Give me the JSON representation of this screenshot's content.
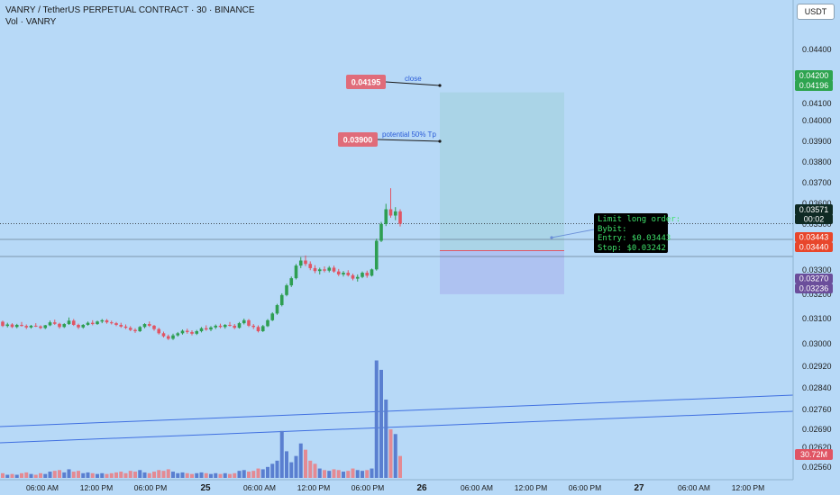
{
  "header": {
    "symbol_line": "VANRY / TetherUS PERPETUAL CONTRACT · 30 · BINANCE",
    "volume_line": "Vol · VANRY"
  },
  "currency_button": "USDT",
  "annotations": {
    "close_tag": "0.04195",
    "close_text": "close",
    "tp_tag": "0.03900",
    "tp_text": "potential 50% Tp",
    "note_lines": [
      "Limit long order:",
      "Bybit:",
      "Entry: $0.03443",
      "Stop: $0.03242"
    ]
  },
  "price_labels": {
    "target_top": "0.04200",
    "target_bottom": "0.04196",
    "last_price": "0.03571",
    "countdown": "00:02",
    "entry_top": "0.03443",
    "entry_bottom": "0.03440",
    "stop_top": "0.03270",
    "stop_bottom": "0.03236",
    "volume_value": "30.72M"
  },
  "colors": {
    "background": "#b7d9f7",
    "up": "#2e9e52",
    "down": "#e05564",
    "vol_up": "#5a7fd0",
    "vol_down": "#e48a93",
    "target_zone": "#a9d3e4",
    "stop_zone": "#adbff0",
    "trendline": "#3f6fe0"
  },
  "chart_data": {
    "type": "candlestick",
    "y_axis_ticks": [
      "0.04400",
      "0.04100",
      "0.04000",
      "0.03900",
      "0.03800",
      "0.03700",
      "0.03600",
      "0.03500",
      "0.03300",
      "0.03200",
      "0.03100",
      "0.03000",
      "0.02920",
      "0.02840",
      "0.02760",
      "0.02690",
      "0.02620",
      "0.02560"
    ],
    "x_axis_ticks": [
      "06:00 AM",
      "12:00 PM",
      "06:00 PM",
      "25",
      "06:00 AM",
      "12:00 PM",
      "06:00 PM",
      "26",
      "06:00 AM",
      "12:00 PM",
      "06:00 PM",
      "27",
      "06:00 AM",
      "12:00 PM"
    ],
    "ohlc": [
      [
        0.03105,
        0.0311,
        0.0308,
        0.03085
      ],
      [
        0.03085,
        0.031,
        0.03078,
        0.03092
      ],
      [
        0.03092,
        0.03098,
        0.03075,
        0.0308
      ],
      [
        0.0308,
        0.03095,
        0.03074,
        0.0309
      ],
      [
        0.0309,
        0.03104,
        0.03082,
        0.03085
      ],
      [
        0.03085,
        0.03092,
        0.0307,
        0.03078
      ],
      [
        0.03078,
        0.0309,
        0.03072,
        0.03086
      ],
      [
        0.03086,
        0.03098,
        0.0308,
        0.03083
      ],
      [
        0.03083,
        0.03088,
        0.0307,
        0.03075
      ],
      [
        0.03075,
        0.0309,
        0.0307,
        0.03088
      ],
      [
        0.03088,
        0.0311,
        0.03084,
        0.03102
      ],
      [
        0.03102,
        0.03115,
        0.0309,
        0.03095
      ],
      [
        0.03095,
        0.031,
        0.03072,
        0.0308
      ],
      [
        0.0308,
        0.03098,
        0.03075,
        0.03094
      ],
      [
        0.03094,
        0.03125,
        0.0309,
        0.0311
      ],
      [
        0.0311,
        0.03118,
        0.03085,
        0.0309
      ],
      [
        0.0309,
        0.03096,
        0.0307,
        0.03078
      ],
      [
        0.03078,
        0.03094,
        0.03072,
        0.0309
      ],
      [
        0.0309,
        0.03106,
        0.03086,
        0.031
      ],
      [
        0.031,
        0.03112,
        0.03088,
        0.03094
      ],
      [
        0.03094,
        0.0311,
        0.0309,
        0.03106
      ],
      [
        0.03106,
        0.03118,
        0.03098,
        0.03112
      ],
      [
        0.03112,
        0.03118,
        0.03096,
        0.03102
      ],
      [
        0.03102,
        0.0311,
        0.03092,
        0.03098
      ],
      [
        0.03098,
        0.03104,
        0.03084,
        0.0309
      ],
      [
        0.0309,
        0.031,
        0.03076,
        0.03082
      ],
      [
        0.03082,
        0.03092,
        0.0307,
        0.03076
      ],
      [
        0.03076,
        0.03084,
        0.0306,
        0.03066
      ],
      [
        0.03066,
        0.03074,
        0.03052,
        0.0306
      ],
      [
        0.0306,
        0.03085,
        0.03056,
        0.0308
      ],
      [
        0.0308,
        0.03098,
        0.03074,
        0.03094
      ],
      [
        0.03094,
        0.03106,
        0.0308,
        0.03086
      ],
      [
        0.03086,
        0.0309,
        0.03062,
        0.0307
      ],
      [
        0.0307,
        0.03076,
        0.03044,
        0.0305
      ],
      [
        0.0305,
        0.03058,
        0.0303,
        0.03036
      ],
      [
        0.03036,
        0.03044,
        0.03018,
        0.03024
      ],
      [
        0.03024,
        0.03048,
        0.03018,
        0.0304
      ],
      [
        0.0304,
        0.03056,
        0.03034,
        0.0305
      ],
      [
        0.0305,
        0.03068,
        0.03044,
        0.03062
      ],
      [
        0.03062,
        0.03072,
        0.03048,
        0.03056
      ],
      [
        0.03056,
        0.03064,
        0.0304,
        0.03048
      ],
      [
        0.03048,
        0.03066,
        0.03042,
        0.0306
      ],
      [
        0.0306,
        0.0308,
        0.03054,
        0.03074
      ],
      [
        0.03074,
        0.03088,
        0.03062,
        0.03068
      ],
      [
        0.03068,
        0.03084,
        0.0306,
        0.03078
      ],
      [
        0.03078,
        0.03092,
        0.0307,
        0.03086
      ],
      [
        0.03086,
        0.03096,
        0.03074,
        0.0308
      ],
      [
        0.0308,
        0.03094,
        0.03072,
        0.0309
      ],
      [
        0.0309,
        0.03104,
        0.03082,
        0.03086
      ],
      [
        0.03086,
        0.03094,
        0.0307,
        0.03076
      ],
      [
        0.03076,
        0.03104,
        0.03072,
        0.03098
      ],
      [
        0.03098,
        0.0312,
        0.03092,
        0.03112
      ],
      [
        0.03112,
        0.03118,
        0.0308,
        0.03086
      ],
      [
        0.03086,
        0.03094,
        0.0307,
        0.0308
      ],
      [
        0.0308,
        0.03088,
        0.03054,
        0.0306
      ],
      [
        0.0306,
        0.0309,
        0.03056,
        0.03084
      ],
      [
        0.03084,
        0.03118,
        0.0308,
        0.03112
      ],
      [
        0.03112,
        0.0315,
        0.03108,
        0.03144
      ],
      [
        0.03144,
        0.0319,
        0.03138,
        0.03184
      ],
      [
        0.03184,
        0.0324,
        0.03178,
        0.03232
      ],
      [
        0.03232,
        0.03286,
        0.03226,
        0.03278
      ],
      [
        0.03278,
        0.0332,
        0.0327,
        0.03312
      ],
      [
        0.03312,
        0.0338,
        0.03306,
        0.03372
      ],
      [
        0.03372,
        0.03412,
        0.0336,
        0.03396
      ],
      [
        0.03396,
        0.0342,
        0.0337,
        0.0338
      ],
      [
        0.0338,
        0.03392,
        0.0335,
        0.0336
      ],
      [
        0.0336,
        0.03374,
        0.03336,
        0.03346
      ],
      [
        0.03346,
        0.03362,
        0.0333,
        0.03354
      ],
      [
        0.03354,
        0.03368,
        0.0334,
        0.03348
      ],
      [
        0.03348,
        0.0337,
        0.0334,
        0.03362
      ],
      [
        0.03362,
        0.03372,
        0.03338,
        0.03344
      ],
      [
        0.03344,
        0.03356,
        0.03322,
        0.0333
      ],
      [
        0.0333,
        0.03346,
        0.0332,
        0.03338
      ],
      [
        0.03338,
        0.0335,
        0.0332,
        0.03326
      ],
      [
        0.03326,
        0.03334,
        0.03302,
        0.0331
      ],
      [
        0.0331,
        0.0333,
        0.03296,
        0.03318
      ],
      [
        0.03318,
        0.03344,
        0.03312,
        0.03338
      ],
      [
        0.03338,
        0.03348,
        0.03314,
        0.03324
      ],
      [
        0.03324,
        0.03358,
        0.0332,
        0.03354
      ],
      [
        0.03354,
        0.035,
        0.03348,
        0.0349
      ],
      [
        0.0349,
        0.0358,
        0.03484,
        0.0357
      ],
      [
        0.0357,
        0.03666,
        0.0356,
        0.0364
      ],
      [
        0.0364,
        0.0374,
        0.036,
        0.0361
      ],
      [
        0.0361,
        0.0365,
        0.03588,
        0.0363
      ],
      [
        0.0363,
        0.0364,
        0.03558,
        0.03571
      ]
    ],
    "volume": [
      [
        6,
        "d"
      ],
      [
        4,
        "u"
      ],
      [
        5,
        "d"
      ],
      [
        4,
        "u"
      ],
      [
        6,
        "d"
      ],
      [
        7,
        "d"
      ],
      [
        5,
        "u"
      ],
      [
        4,
        "d"
      ],
      [
        6,
        "d"
      ],
      [
        5,
        "u"
      ],
      [
        8,
        "u"
      ],
      [
        9,
        "d"
      ],
      [
        10,
        "d"
      ],
      [
        7,
        "u"
      ],
      [
        11,
        "u"
      ],
      [
        8,
        "d"
      ],
      [
        9,
        "d"
      ],
      [
        6,
        "u"
      ],
      [
        7,
        "u"
      ],
      [
        6,
        "d"
      ],
      [
        5,
        "u"
      ],
      [
        6,
        "u"
      ],
      [
        5,
        "d"
      ],
      [
        6,
        "d"
      ],
      [
        7,
        "d"
      ],
      [
        8,
        "d"
      ],
      [
        6,
        "d"
      ],
      [
        9,
        "d"
      ],
      [
        8,
        "d"
      ],
      [
        10,
        "u"
      ],
      [
        7,
        "u"
      ],
      [
        6,
        "d"
      ],
      [
        8,
        "d"
      ],
      [
        10,
        "d"
      ],
      [
        9,
        "d"
      ],
      [
        11,
        "d"
      ],
      [
        8,
        "u"
      ],
      [
        6,
        "u"
      ],
      [
        7,
        "u"
      ],
      [
        6,
        "d"
      ],
      [
        5,
        "d"
      ],
      [
        6,
        "u"
      ],
      [
        7,
        "u"
      ],
      [
        6,
        "d"
      ],
      [
        5,
        "u"
      ],
      [
        6,
        "u"
      ],
      [
        5,
        "d"
      ],
      [
        6,
        "u"
      ],
      [
        5,
        "d"
      ],
      [
        6,
        "d"
      ],
      [
        9,
        "u"
      ],
      [
        10,
        "u"
      ],
      [
        8,
        "d"
      ],
      [
        9,
        "d"
      ],
      [
        12,
        "d"
      ],
      [
        11,
        "u"
      ],
      [
        14,
        "u"
      ],
      [
        18,
        "u"
      ],
      [
        22,
        "u"
      ],
      [
        60,
        "u"
      ],
      [
        34,
        "u"
      ],
      [
        20,
        "u"
      ],
      [
        28,
        "u"
      ],
      [
        44,
        "u"
      ],
      [
        36,
        "d"
      ],
      [
        22,
        "d"
      ],
      [
        18,
        "d"
      ],
      [
        12,
        "u"
      ],
      [
        10,
        "d"
      ],
      [
        9,
        "u"
      ],
      [
        11,
        "d"
      ],
      [
        10,
        "d"
      ],
      [
        8,
        "u"
      ],
      [
        9,
        "d"
      ],
      [
        12,
        "d"
      ],
      [
        10,
        "u"
      ],
      [
        9,
        "u"
      ],
      [
        10,
        "d"
      ],
      [
        12,
        "u"
      ],
      [
        150,
        "u"
      ],
      [
        138,
        "u"
      ],
      [
        100,
        "u"
      ],
      [
        62,
        "d"
      ],
      [
        56,
        "u"
      ],
      [
        28,
        "d"
      ]
    ]
  }
}
